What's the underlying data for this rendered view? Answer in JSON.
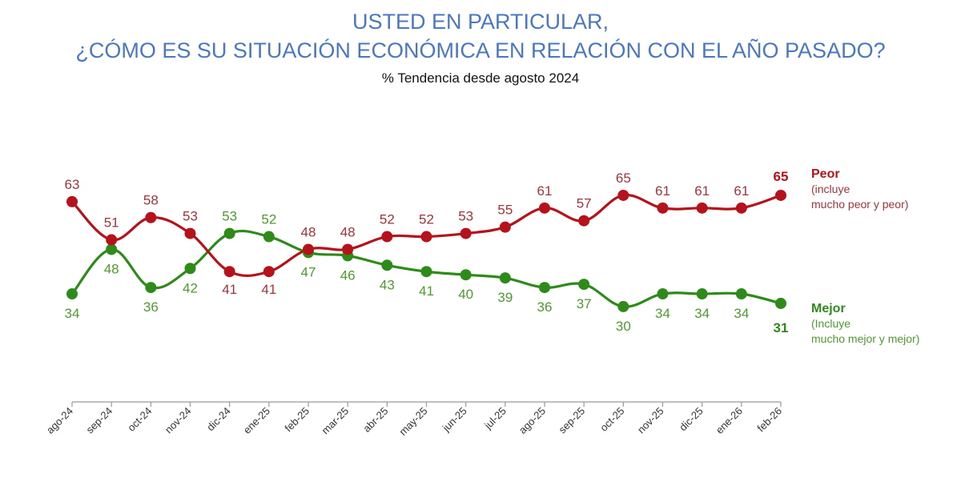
{
  "header": {
    "title_line1": "USTED EN PARTICULAR,",
    "title_line2": "¿CÓMO ES SU SITUACIÓN ECONÓMICA EN RELACIÓN CON EL AÑO PASADO?",
    "subtitle": "%  Tendencia desde agosto 2024"
  },
  "colors": {
    "peor": "#b5121b",
    "peor_label": "#a0343a",
    "mejor": "#2e8b1a",
    "mejor_label": "#4e9a2e",
    "title": "#4a78c0",
    "axis": "#9a9a9a"
  },
  "chart_data": {
    "type": "line",
    "title": "USTED EN PARTICULAR, ¿CÓMO ES SU SITUACIÓN ECONÓMICA EN RELACIÓN CON EL AÑO PASADO?",
    "subtitle": "% Tendencia desde agosto 2024",
    "xlabel": "",
    "ylabel": "",
    "ylim": [
      0,
      70
    ],
    "grid": false,
    "legend_placement": "right",
    "categories": [
      "ago-24",
      "sep-24",
      "oct-24",
      "nov-24",
      "dic-24",
      "ene-25",
      "feb-25",
      "mar-25",
      "abr-25",
      "may-25",
      "jun-25",
      "jul-25",
      "ago-25",
      "sep-25",
      "oct-25",
      "nov-25",
      "dic-25",
      "ene-26",
      "feb-26"
    ],
    "series": [
      {
        "name": "Peor",
        "description": "(incluye mucho peor y peor)",
        "values": [
          63,
          51,
          58,
          53,
          41,
          41,
          48,
          48,
          52,
          52,
          53,
          55,
          61,
          57,
          65,
          61,
          61,
          61,
          65
        ]
      },
      {
        "name": "Mejor",
        "description": "(Incluye mucho mejor y mejor)",
        "values": [
          34,
          48,
          36,
          42,
          53,
          52,
          47,
          46,
          43,
          41,
          40,
          39,
          36,
          37,
          30,
          34,
          34,
          34,
          31
        ]
      }
    ]
  },
  "legend": {
    "peor_name": "Peor",
    "peor_desc_line1": "(incluye",
    "peor_desc_line2": "mucho peor y peor)",
    "mejor_name": "Mejor",
    "mejor_desc_line1": "(Incluye",
    "mejor_desc_line2": "mucho mejor y mejor)"
  }
}
